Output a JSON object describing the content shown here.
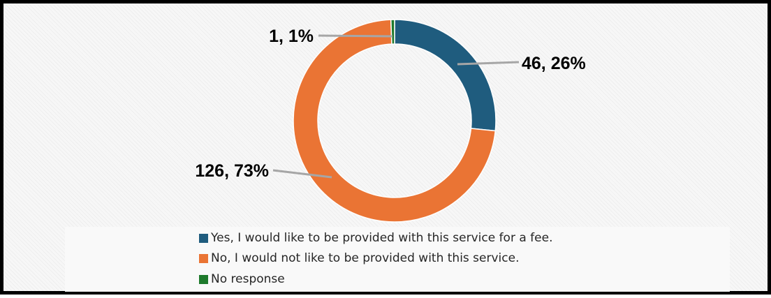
{
  "chart_data": {
    "type": "pie",
    "donut": true,
    "legend_position": "bottom",
    "slices": [
      {
        "label": "Yes, I would like to be provided with this service for a fee.",
        "value": 46,
        "percent": 26,
        "color": "#1f5c7e",
        "data_label": "46, 26%"
      },
      {
        "label": "No, I would not like to be provided with this service.",
        "value": 126,
        "percent": 73,
        "color": "#ea7434",
        "data_label": "126, 73%"
      },
      {
        "label": "No response",
        "value": 1,
        "percent": 1,
        "color": "#1e7a2c",
        "data_label": "1, 1%"
      }
    ]
  }
}
